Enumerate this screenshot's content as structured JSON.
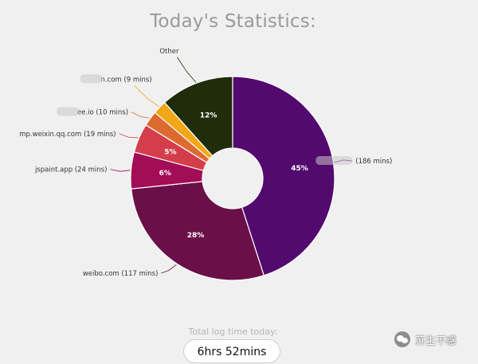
{
  "chart_data": {
    "type": "pie",
    "title": "Today's Statistics:",
    "slices": [
      {
        "label": "",
        "label_minutes": "(186 mins)",
        "minutes": 186,
        "percent_text": "45%",
        "color": "#530a6e"
      },
      {
        "label": "weibo.com",
        "label_minutes": "(117 mins)",
        "minutes": 117,
        "percent_text": "28%",
        "color": "#6a0f48"
      },
      {
        "label": "jspaint.app",
        "label_minutes": "(24 mins)",
        "minutes": 24,
        "percent_text": "6%",
        "color": "#a30c56"
      },
      {
        "label": "mp.weixin.qq.com",
        "label_minutes": "(19 mins)",
        "minutes": 19,
        "percent_text": "5%",
        "color": "#d43d4a"
      },
      {
        "label": "ee.io",
        "label_minutes": "(10 mins)",
        "minutes": 10,
        "percent_text": "",
        "color": "#dd6b31"
      },
      {
        "label": "n.com",
        "label_minutes": "(9 mins)",
        "minutes": 9,
        "percent_text": "",
        "color": "#f2a716"
      },
      {
        "label": "Other",
        "label_minutes": "",
        "minutes": 48,
        "percent_text": "12%",
        "color": "#1f2d0a"
      }
    ]
  },
  "total": {
    "label": "Total log time today:",
    "value": "6hrs 52mins"
  },
  "watermark": {
    "text": "苏生不惑"
  }
}
